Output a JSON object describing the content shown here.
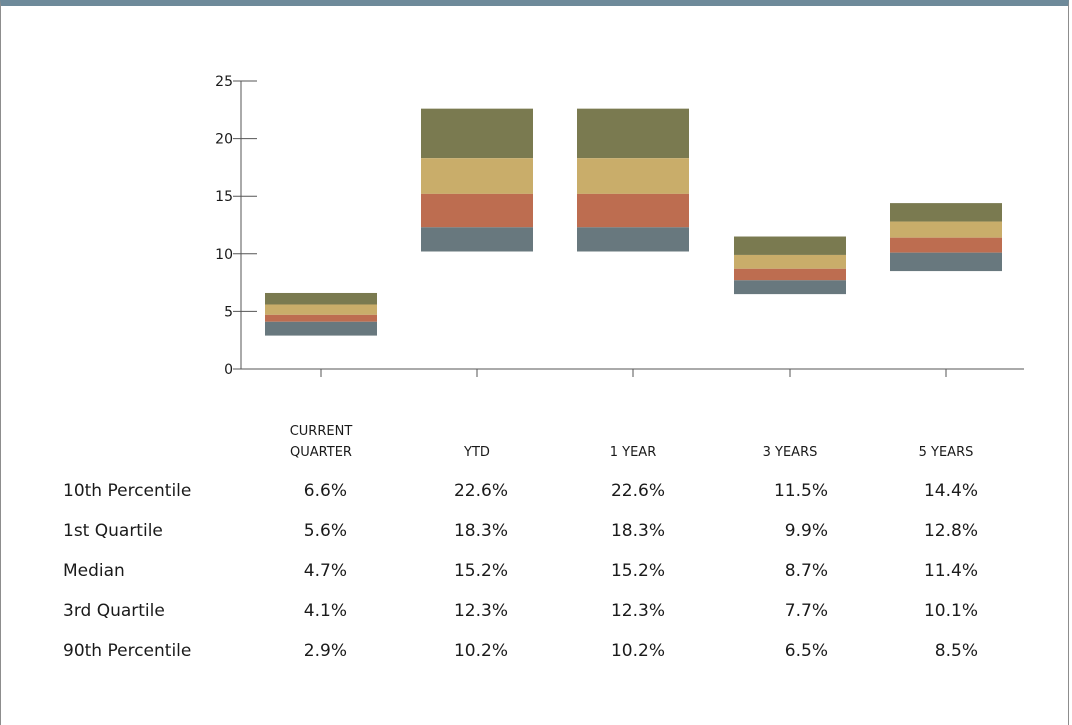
{
  "chart_data": {
    "type": "bar",
    "title": "",
    "categories": [
      "CURRENT QUARTER",
      "YTD",
      "1 YEAR",
      "3 YEARS",
      "5 YEARS"
    ],
    "category_lines": [
      [
        "CURRENT",
        "QUARTER"
      ],
      [
        "YTD"
      ],
      [
        "1 YEAR"
      ],
      [
        "3 YEARS"
      ],
      [
        "5 YEARS"
      ]
    ],
    "y_ticks": [
      0,
      5,
      10,
      15,
      20,
      25
    ],
    "ylim": [
      0,
      25
    ],
    "grid": false,
    "legend": "none",
    "series": [
      {
        "values": [
          6.6,
          22.6,
          22.6,
          11.5,
          14.4
        ],
        "color": "#7a7a50"
      },
      {
        "values": [
          5.6,
          18.3,
          18.3,
          9.9,
          12.8
        ],
        "color": "#c9ad6a"
      },
      {
        "values": [
          4.7,
          15.2,
          15.2,
          8.7,
          11.4
        ],
        "color": "#bd6d50"
      },
      {
        "values": [
          4.1,
          12.3,
          12.3,
          7.7,
          10.1
        ],
        "color": "#68787e"
      },
      {
        "values": [
          2.9,
          10.2,
          10.2,
          6.5,
          8.5
        ]
      }
    ]
  },
  "table": {
    "rows": [
      {
        "label": "10th Percentile",
        "cells": [
          "6.6%",
          "22.6%",
          "22.6%",
          "11.5%",
          "14.4%"
        ]
      },
      {
        "label": "1st Quartile",
        "cells": [
          "5.6%",
          "18.3%",
          "18.3%",
          "9.9%",
          "12.8%"
        ]
      },
      {
        "label": "Median",
        "cells": [
          "4.7%",
          "15.2%",
          "15.2%",
          "8.7%",
          "11.4%"
        ]
      },
      {
        "label": "3rd Quartile",
        "cells": [
          "4.1%",
          "12.3%",
          "12.3%",
          "7.7%",
          "10.1%"
        ]
      },
      {
        "label": "90th Percentile",
        "cells": [
          "2.9%",
          "10.2%",
          "10.2%",
          "6.5%",
          "8.5%"
        ]
      }
    ]
  }
}
